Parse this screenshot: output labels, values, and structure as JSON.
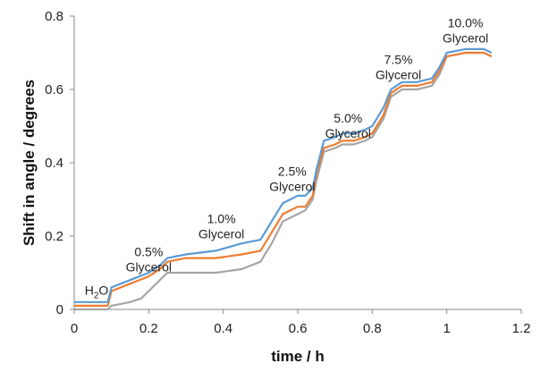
{
  "chart_data": {
    "type": "line",
    "title": "",
    "xlabel": "time / h",
    "ylabel": "Shift in angle / degrees",
    "xlim": [
      0,
      1.2
    ],
    "ylim": [
      0,
      0.8
    ],
    "xticks": [
      "0",
      "0.2",
      "0.4",
      "0.6",
      "0.8",
      "1",
      "1.2"
    ],
    "yticks": [
      "0",
      "0.2",
      "0.4",
      "0.6",
      "0.8"
    ],
    "grid": false,
    "legend": "none",
    "series": [
      {
        "color": "#5b9bd5",
        "x": [
          0.0,
          0.09,
          0.1,
          0.15,
          0.2,
          0.23,
          0.25,
          0.3,
          0.38,
          0.45,
          0.5,
          0.53,
          0.56,
          0.58,
          0.6,
          0.62,
          0.64,
          0.65,
          0.67,
          0.7,
          0.72,
          0.75,
          0.78,
          0.8,
          0.83,
          0.85,
          0.88,
          0.92,
          0.96,
          0.98,
          1.0,
          1.05,
          1.1,
          1.12
        ],
        "y": [
          0.02,
          0.02,
          0.06,
          0.08,
          0.1,
          0.12,
          0.14,
          0.15,
          0.16,
          0.18,
          0.19,
          0.24,
          0.29,
          0.3,
          0.31,
          0.31,
          0.33,
          0.38,
          0.46,
          0.47,
          0.48,
          0.48,
          0.49,
          0.5,
          0.55,
          0.6,
          0.62,
          0.62,
          0.63,
          0.66,
          0.7,
          0.71,
          0.71,
          0.7
        ]
      },
      {
        "color": "#ed7d31",
        "x": [
          0.0,
          0.09,
          0.1,
          0.15,
          0.2,
          0.23,
          0.25,
          0.3,
          0.38,
          0.45,
          0.5,
          0.53,
          0.56,
          0.58,
          0.6,
          0.62,
          0.64,
          0.65,
          0.67,
          0.7,
          0.72,
          0.75,
          0.78,
          0.8,
          0.83,
          0.85,
          0.88,
          0.92,
          0.96,
          0.98,
          1.0,
          1.05,
          1.1,
          1.12
        ],
        "y": [
          0.01,
          0.01,
          0.05,
          0.07,
          0.09,
          0.11,
          0.13,
          0.14,
          0.14,
          0.15,
          0.16,
          0.21,
          0.26,
          0.27,
          0.28,
          0.28,
          0.31,
          0.37,
          0.44,
          0.45,
          0.46,
          0.46,
          0.47,
          0.48,
          0.53,
          0.59,
          0.61,
          0.61,
          0.62,
          0.65,
          0.69,
          0.7,
          0.7,
          0.69
        ]
      },
      {
        "color": "#a5a5a5",
        "x": [
          0.0,
          0.09,
          0.1,
          0.15,
          0.18,
          0.2,
          0.23,
          0.25,
          0.3,
          0.38,
          0.45,
          0.5,
          0.53,
          0.56,
          0.58,
          0.6,
          0.62,
          0.64,
          0.65,
          0.67,
          0.7,
          0.72,
          0.75,
          0.78,
          0.8,
          0.83,
          0.85,
          0.88,
          0.92,
          0.96,
          0.98,
          1.0,
          1.05,
          1.1,
          1.12
        ],
        "y": [
          0.0,
          0.0,
          0.01,
          0.02,
          0.03,
          0.05,
          0.08,
          0.1,
          0.1,
          0.1,
          0.11,
          0.13,
          0.18,
          0.24,
          0.25,
          0.26,
          0.27,
          0.3,
          0.35,
          0.43,
          0.44,
          0.45,
          0.45,
          0.46,
          0.47,
          0.52,
          0.58,
          0.6,
          0.6,
          0.61,
          0.64,
          0.69,
          0.7,
          0.7,
          0.69
        ]
      }
    ],
    "annotations": [
      {
        "line1": "H",
        "sub": "2",
        "line1b": "O",
        "line2": "",
        "x": 0.06,
        "y": 0.04
      },
      {
        "line1": "0.5%",
        "line2": "Glycerol",
        "x": 0.2,
        "y": 0.145
      },
      {
        "line1": "1.0%",
        "line2": "Glycerol",
        "x": 0.395,
        "y": 0.235
      },
      {
        "line1": "2.5%",
        "line2": "Glycerol",
        "x": 0.585,
        "y": 0.365
      },
      {
        "line1": "5.0%",
        "line2": "Glycerol",
        "x": 0.735,
        "y": 0.51
      },
      {
        "line1": "7.5%",
        "line2": "Glycerol",
        "x": 0.87,
        "y": 0.67
      },
      {
        "line1": "10.0%",
        "line2": "Glycerol",
        "x": 1.05,
        "y": 0.77
      }
    ]
  }
}
